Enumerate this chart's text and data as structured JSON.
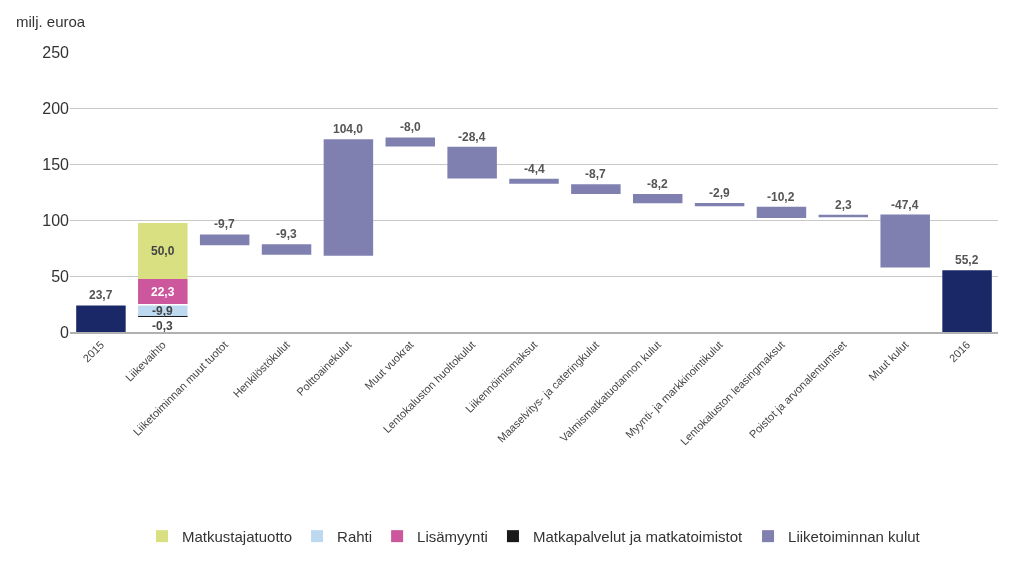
{
  "chart_data": {
    "type": "bar",
    "ylabel": "milj. euroa",
    "categories": [
      "2015",
      "Liikevaihto",
      "Liiketoiminnan muut tuotot",
      "Henkilöstökulut",
      "Polttoainekulut",
      "Muut vuokrat",
      "Lentokaluston huoltokulut",
      "Liikennöimismaksut",
      "Maaselvitys- ja cateringkulut",
      "Valmismatkatuotannon kulut",
      "Myynti- ja markkinointikulut",
      "Lentokaluston leasingmaksut",
      "Poistot ja arvonalentumiset",
      "Muut kulut",
      "2016"
    ],
    "series": [
      {
        "color": "#1b2868",
        "values": [
          23.7,
          null,
          null,
          null,
          null,
          null,
          null,
          null,
          null,
          null,
          null,
          null,
          null,
          null,
          55.2
        ],
        "base": [
          0,
          null,
          null,
          null,
          null,
          null,
          null,
          null,
          null,
          null,
          null,
          null,
          null,
          null,
          0
        ],
        "value_labels": [
          "23,7",
          null,
          null,
          null,
          null,
          null,
          null,
          null,
          null,
          null,
          null,
          null,
          null,
          null,
          "55,2"
        ]
      },
      {
        "name": "Matkustajatuotto",
        "color": "#d9e082",
        "values": [
          null,
          50.0,
          null,
          null,
          null,
          null,
          null,
          null,
          null,
          null,
          null,
          null,
          null,
          null,
          null
        ],
        "base": [
          null,
          47.3,
          null,
          null,
          null,
          null,
          null,
          null,
          null,
          null,
          null,
          null,
          null,
          null,
          null
        ],
        "value_labels": [
          null,
          "50,0",
          null,
          null,
          null,
          null,
          null,
          null,
          null,
          null,
          null,
          null,
          null,
          null,
          null
        ]
      },
      {
        "name": "Rahti",
        "color": "#bcd9f0",
        "values": [
          null,
          -9.9,
          null,
          null,
          null,
          null,
          null,
          null,
          null,
          null,
          null,
          null,
          null,
          null,
          null
        ],
        "base": [
          null,
          23.7,
          null,
          null,
          null,
          null,
          null,
          null,
          null,
          null,
          null,
          null,
          null,
          null,
          null
        ],
        "value_labels": [
          null,
          "-9,9",
          null,
          null,
          null,
          null,
          null,
          null,
          null,
          null,
          null,
          null,
          null,
          null,
          null
        ]
      },
      {
        "name": "Lisämyynti",
        "color": "#cc579c",
        "values": [
          null,
          22.3,
          null,
          null,
          null,
          null,
          null,
          null,
          null,
          null,
          null,
          null,
          null,
          null,
          null
        ],
        "base": [
          null,
          25.0,
          null,
          null,
          null,
          null,
          null,
          null,
          null,
          null,
          null,
          null,
          null,
          null,
          null
        ],
        "value_labels": [
          null,
          "22,3",
          null,
          null,
          null,
          null,
          null,
          null,
          null,
          null,
          null,
          null,
          null,
          null,
          null
        ]
      },
      {
        "name": "Matkapalvelut ja matkatoimistot",
        "color": "#1a1a1a",
        "values": [
          null,
          -0.3,
          null,
          null,
          null,
          null,
          null,
          null,
          null,
          null,
          null,
          null,
          null,
          null,
          null
        ],
        "base": [
          null,
          13.8,
          null,
          null,
          null,
          null,
          null,
          null,
          null,
          null,
          null,
          null,
          null,
          null,
          null
        ],
        "value_labels": [
          null,
          "-0,3",
          null,
          null,
          null,
          null,
          null,
          null,
          null,
          null,
          null,
          null,
          null,
          null,
          null
        ]
      },
      {
        "name": "Liiketoiminnan kulut",
        "color": "#7f80b0",
        "values": [
          null,
          null,
          -9.7,
          -9.3,
          104.0,
          -8.0,
          -28.4,
          -4.4,
          -8.7,
          -8.2,
          -2.9,
          -10.2,
          2.3,
          -47.4,
          null
        ],
        "base": [
          null,
          null,
          87.1,
          78.3,
          68.0,
          173.7,
          165.5,
          136.8,
          132.0,
          123.2,
          115.2,
          111.9,
          102.4,
          104.9,
          null
        ],
        "value_labels": [
          null,
          null,
          "-9,7",
          "-9,3",
          "104,0",
          "-8,0",
          "-28,4",
          "-4,4",
          "-8,7",
          "-8,2",
          "-2,9",
          "-10,2",
          "2,3",
          "-47,4",
          null
        ]
      }
    ],
    "ylim": [
      0,
      250
    ],
    "yticks": [
      0,
      50,
      100,
      150,
      200,
      250
    ],
    "grid": "y",
    "legend": "bottom"
  }
}
